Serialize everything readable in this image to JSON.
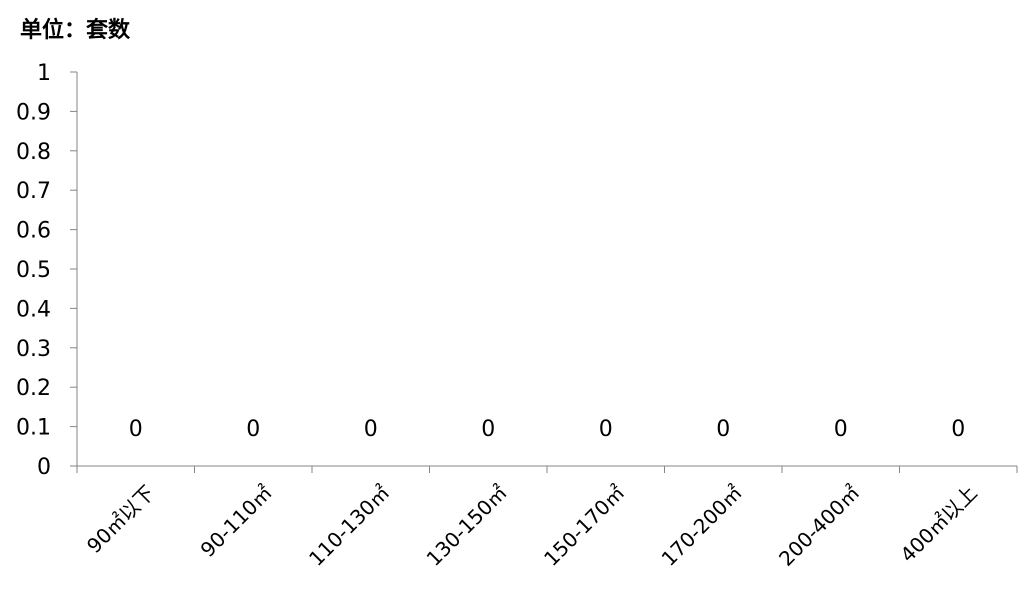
{
  "chart_data": {
    "type": "bar",
    "title": "单位：套数",
    "categories": [
      "90㎡以下",
      "90-110㎡",
      "110-130㎡",
      "130-150㎡",
      "150-170㎡",
      "170-200㎡",
      "200-400㎡",
      "400㎡以上"
    ],
    "values": [
      0,
      0,
      0,
      0,
      0,
      0,
      0,
      0
    ],
    "data_labels": [
      "0",
      "0",
      "0",
      "0",
      "0",
      "0",
      "0",
      "0"
    ],
    "y_ticks": [
      "0",
      "0.1",
      "0.2",
      "0.3",
      "0.4",
      "0.5",
      "0.6",
      "0.7",
      "0.8",
      "0.9",
      "1"
    ],
    "ylim": [
      0,
      1
    ],
    "grid": false,
    "legend": "none",
    "colors": {
      "axis": "#868686",
      "text": "#000000"
    }
  }
}
